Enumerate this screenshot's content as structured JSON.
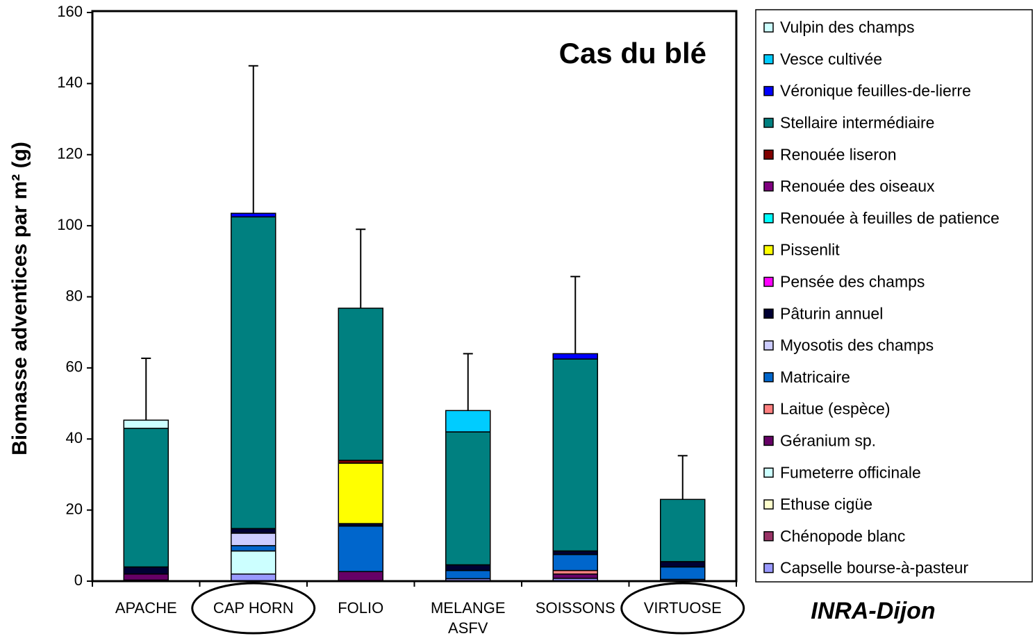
{
  "chart_data": {
    "type": "stacked_bar",
    "title": "Cas du blé",
    "annotation": "INRA-Dijon",
    "y_label": "Biomasse adventices par m² (g)",
    "categories": [
      "APACHE",
      "CAP HORN",
      "FOLIO",
      "MELANGE\nASFV",
      "SOISSONS",
      "VIRTUOSE"
    ],
    "circled": [
      false,
      true,
      false,
      false,
      false,
      true
    ],
    "ylim": [
      0,
      160
    ],
    "yticks": [
      0,
      20,
      40,
      60,
      80,
      100,
      120,
      140,
      160
    ],
    "series": [
      {
        "name": "Capselle bourse-à-pasteur",
        "color": "#9999ff",
        "values": [
          0.3,
          2,
          0,
          0.7,
          0.8,
          0.5
        ]
      },
      {
        "name": "Chénopode blanc",
        "color": "#993366",
        "values": [
          0,
          0,
          0,
          0,
          0,
          0
        ]
      },
      {
        "name": "Ethuse cigüe",
        "color": "#ffffcc",
        "values": [
          0,
          0,
          0,
          0,
          0,
          0
        ]
      },
      {
        "name": "Fumeterre officinale",
        "color": "#ccffff",
        "values": [
          0,
          6.5,
          0,
          0,
          0,
          0
        ]
      },
      {
        "name": "Géranium sp.",
        "color": "#660066",
        "values": [
          1.7,
          0,
          2.7,
          0,
          1.2,
          0
        ]
      },
      {
        "name": "Laitue (espèce)",
        "color": "#ff8080",
        "values": [
          0,
          0,
          0,
          0,
          1,
          0
        ]
      },
      {
        "name": "Matricaire",
        "color": "#0066cc",
        "values": [
          0,
          1.5,
          12.8,
          2.3,
          4.5,
          3.5
        ]
      },
      {
        "name": "Myosotis des champs",
        "color": "#ccccff",
        "values": [
          0,
          3.5,
          0,
          0,
          0,
          0
        ]
      },
      {
        "name": "Pâturin annuel",
        "color": "#000033",
        "values": [
          2,
          1.3,
          0.7,
          1.6,
          1,
          1.5
        ]
      },
      {
        "name": "Pensée des champs",
        "color": "#ff00ff",
        "values": [
          0,
          0,
          0,
          0,
          0,
          0
        ]
      },
      {
        "name": "Pissenlit",
        "color": "#ffff00",
        "values": [
          0,
          0,
          17,
          0,
          0,
          0
        ]
      },
      {
        "name": "Renouée à feuilles de patience",
        "color": "#00ffff",
        "values": [
          0,
          0,
          0,
          0,
          0,
          0
        ]
      },
      {
        "name": "Renouée des oiseaux",
        "color": "#800080",
        "values": [
          0,
          0,
          0,
          0,
          0,
          0
        ]
      },
      {
        "name": "Renouée liseron",
        "color": "#800000",
        "values": [
          0,
          0,
          0.8,
          0,
          0,
          0
        ]
      },
      {
        "name": "Stellaire intermédiaire",
        "color": "#008080",
        "values": [
          39,
          87.7,
          42.8,
          37.4,
          54,
          17.5
        ]
      },
      {
        "name": "Véronique feuilles-de-lierre",
        "color": "#0000ff",
        "values": [
          0,
          1,
          0,
          0,
          1.5,
          0
        ]
      },
      {
        "name": "Vesce cultivée",
        "color": "#00ccff",
        "values": [
          0,
          0,
          0,
          6,
          0,
          0
        ]
      },
      {
        "name": "Vulpin des champs",
        "color": "#ccffff",
        "values": [
          2.3,
          0,
          0,
          0,
          0,
          0
        ]
      }
    ],
    "errors": [
      17.4,
      41.5,
      22.2,
      16,
      21.7,
      12.3
    ]
  }
}
